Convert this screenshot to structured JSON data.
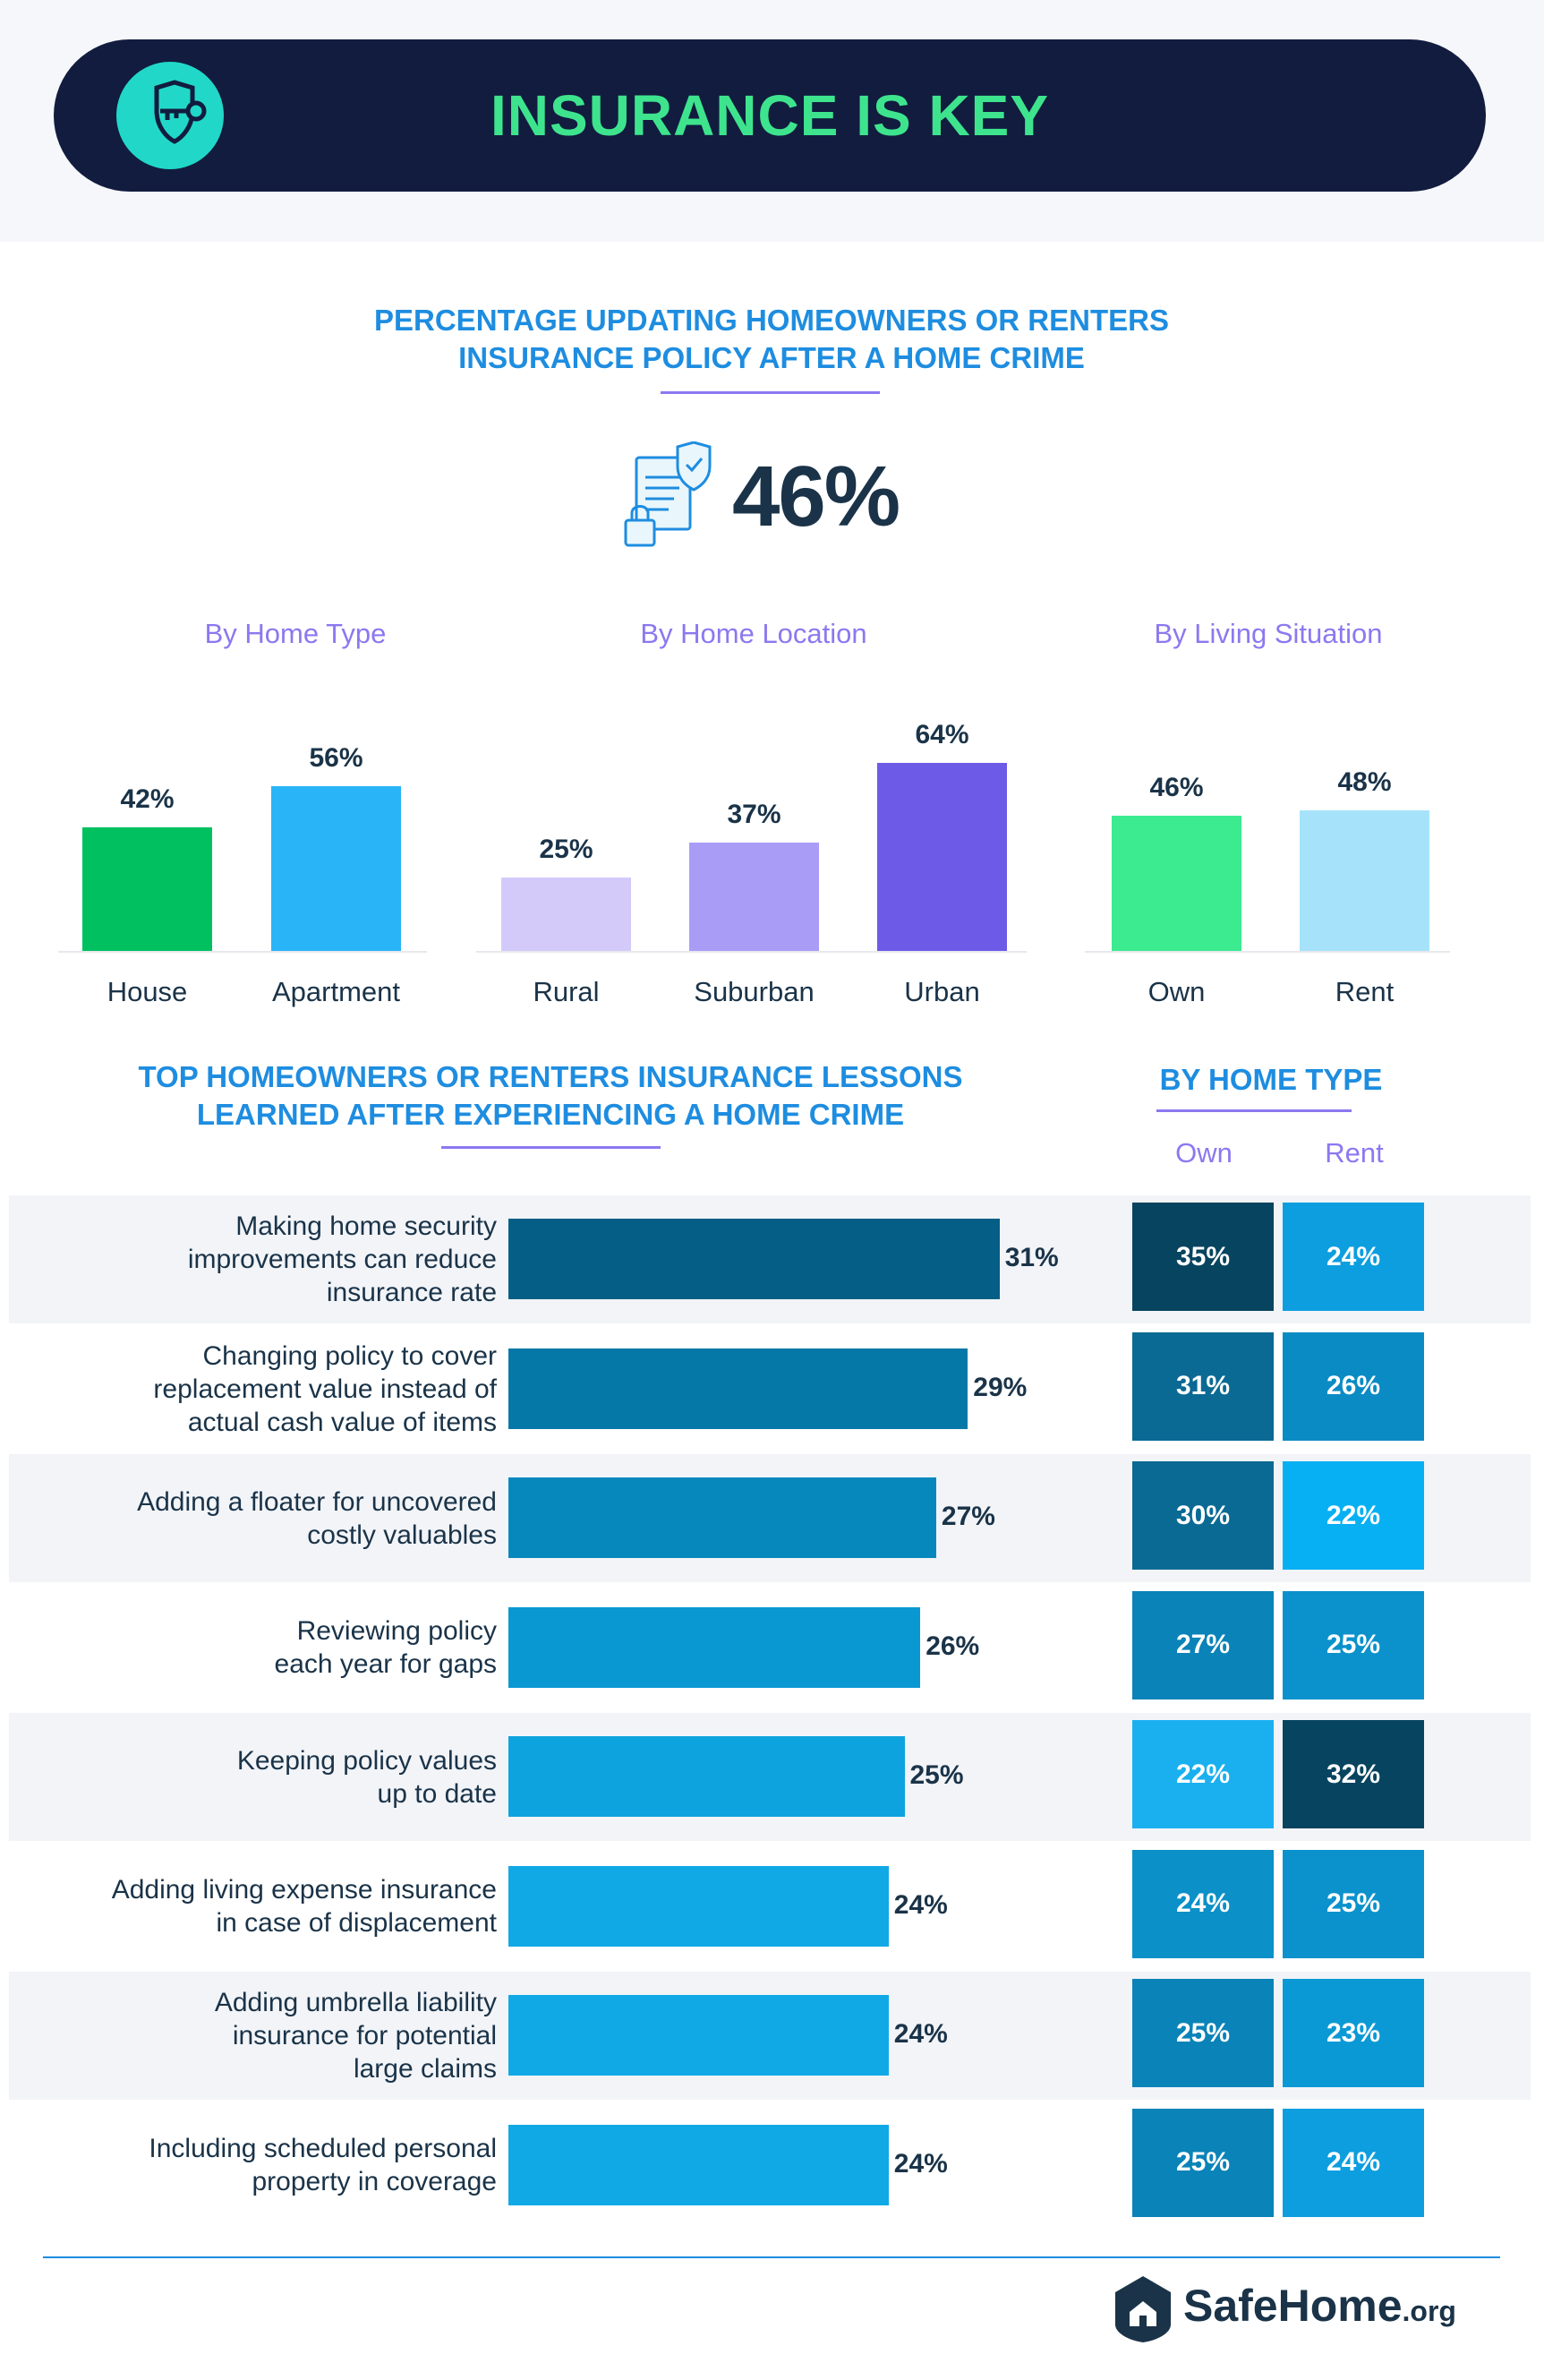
{
  "banner": {
    "title": "INSURANCE IS KEY"
  },
  "section1": {
    "heading_line1": "PERCENTAGE UPDATING HOMEOWNERS OR RENTERS",
    "heading_line2": "INSURANCE POLICY AFTER A HOME CRIME",
    "overall": "46%"
  },
  "section2": {
    "heading_line1": "TOP HOMEOWNERS OR RENTERS INSURANCE LESSONS",
    "heading_line2": "LEARNED AFTER EXPERIENCING A HOME CRIME",
    "by_home_type": "BY HOME TYPE",
    "col_own": "Own",
    "col_rent": "Rent"
  },
  "footer": {
    "brand": "SafeHome",
    "domain": ".org"
  },
  "colors": {
    "banner_bg": "#111c3f",
    "banner_title": "#3ee48d",
    "heading": "#1e8de0",
    "accent_purple": "#8c78f0"
  },
  "chart_data": [
    {
      "type": "bar",
      "title": "By Home Type",
      "categories": [
        "House",
        "Apartment"
      ],
      "values": [
        42,
        56
      ],
      "value_labels": [
        "42%",
        "56%"
      ],
      "colors": [
        "#00c060",
        "#2ab4f8"
      ],
      "ylim": [
        0,
        64
      ]
    },
    {
      "type": "bar",
      "title": "By Home Location",
      "categories": [
        "Rural",
        "Suburban",
        "Urban"
      ],
      "values": [
        25,
        37,
        64
      ],
      "value_labels": [
        "25%",
        "37%",
        "64%"
      ],
      "colors": [
        "#d4cafa",
        "#a99cf7",
        "#6d5be7"
      ],
      "ylim": [
        0,
        64
      ]
    },
    {
      "type": "bar",
      "title": "By Living Situation",
      "categories": [
        "Own",
        "Rent"
      ],
      "values": [
        46,
        48
      ],
      "value_labels": [
        "46%",
        "48%"
      ],
      "colors": [
        "#3cea90",
        "#a6e3fb"
      ],
      "ylim": [
        0,
        64
      ]
    },
    {
      "type": "bar",
      "orientation": "horizontal",
      "categories": [
        "Making home security improvements can reduce insurance rate",
        "Changing policy to cover replacement value instead of actual cash value of items",
        "Adding a floater for uncovered costly valuables",
        "Reviewing policy each year for gaps",
        "Keeping policy values up to date",
        "Adding living expense insurance in case of displacement",
        "Adding umbrella liability insurance for potential large claims",
        "Including scheduled personal property in coverage"
      ],
      "label_lines": [
        [
          "Making home security",
          "improvements can reduce",
          "insurance rate"
        ],
        [
          "Changing policy to cover",
          "replacement value instead of",
          "actual cash value of items"
        ],
        [
          "Adding a floater for uncovered",
          "costly valuables"
        ],
        [
          "Reviewing policy",
          "each year for gaps"
        ],
        [
          "Keeping policy values",
          "up to date"
        ],
        [
          "Adding living expense insurance",
          "in case of displacement"
        ],
        [
          "Adding umbrella liability",
          "insurance for potential",
          "large claims"
        ],
        [
          "Including scheduled personal",
          "property in coverage"
        ]
      ],
      "values": [
        31,
        29,
        27,
        26,
        25,
        24,
        24,
        24
      ],
      "value_labels": [
        "31%",
        "29%",
        "27%",
        "26%",
        "25%",
        "24%",
        "24%",
        "24%"
      ],
      "colors": [
        "#055e85",
        "#0678a8",
        "#0788bd",
        "#0a98d2",
        "#0da3de",
        "#10a9e6",
        "#10a9e6",
        "#10a9e6"
      ],
      "xlim": [
        0,
        35
      ]
    },
    {
      "type": "table",
      "title": "BY HOME TYPE",
      "columns": [
        "Own",
        "Rent"
      ],
      "own": [
        35,
        31,
        30,
        27,
        22,
        24,
        25,
        25
      ],
      "rent": [
        24,
        26,
        22,
        25,
        32,
        25,
        23,
        24
      ],
      "own_labels": [
        "35%",
        "31%",
        "30%",
        "27%",
        "22%",
        "24%",
        "25%",
        "25%"
      ],
      "rent_labels": [
        "24%",
        "26%",
        "22%",
        "25%",
        "32%",
        "25%",
        "23%",
        "24%"
      ],
      "own_colors": [
        "#07445f",
        "#0a6a94",
        "#0a6a94",
        "#0a83b8",
        "#1ab0f0",
        "#0b90c8",
        "#0a83b8",
        "#0a83b8"
      ],
      "rent_colors": [
        "#0d9ee0",
        "#0a8bc4",
        "#07b0f2",
        "#0b92cc",
        "#07445f",
        "#0b92cc",
        "#0b99d6",
        "#0d9ee0"
      ]
    }
  ]
}
